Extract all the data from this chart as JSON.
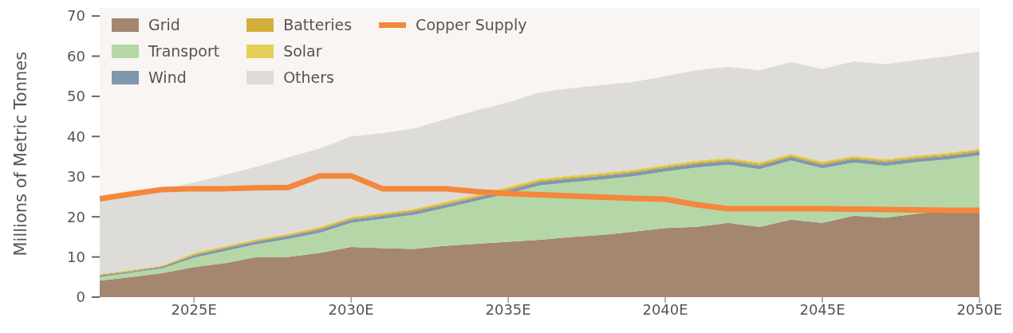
{
  "chart_data": {
    "type": "area",
    "stacked": true,
    "ylabel": "Millions of Metric Tonnes",
    "x": [
      2022,
      2023,
      2024,
      2025,
      2026,
      2027,
      2028,
      2029,
      2030,
      2031,
      2032,
      2033,
      2034,
      2035,
      2036,
      2037,
      2038,
      2039,
      2040,
      2041,
      2042,
      2043,
      2044,
      2045,
      2046,
      2047,
      2048,
      2049,
      2050
    ],
    "xlim": [
      2022,
      2050
    ],
    "xticks": [
      {
        "value": 2025,
        "label": "2025E"
      },
      {
        "value": 2030,
        "label": "2030E"
      },
      {
        "value": 2035,
        "label": "2035E"
      },
      {
        "value": 2040,
        "label": "2040E"
      },
      {
        "value": 2045,
        "label": "2045E"
      },
      {
        "value": 2050,
        "label": "2050E"
      }
    ],
    "ylim": [
      0,
      72
    ],
    "yticks": [
      0,
      10,
      20,
      30,
      40,
      50,
      60,
      70
    ],
    "grid": false,
    "legend": "top left",
    "marker": "none",
    "line_style": "solid",
    "series": [
      {
        "name": "Grid",
        "color": "#a58670",
        "values": [
          4.1,
          5,
          6,
          7.5,
          8.5,
          10,
          10,
          11,
          12.5,
          12.2,
          12,
          12.8,
          13.3,
          13.8,
          14.3,
          15,
          15.5,
          16.3,
          17.2,
          17.5,
          18.5,
          17.5,
          19.3,
          18.5,
          20.3,
          19.8,
          20.8,
          21.5,
          22
        ]
      },
      {
        "name": "Transport",
        "color": "#b5d7a8",
        "values": [
          0.9,
          1.1,
          1.2,
          2.3,
          3,
          3.2,
          4.5,
          5,
          6,
          7.3,
          8.5,
          9.4,
          10.7,
          12,
          13.5,
          13.6,
          13.8,
          13.8,
          14.1,
          14.8,
          14.5,
          14.4,
          14.7,
          13.6,
          13.2,
          12.9,
          12.8,
          12.8,
          13.3
        ]
      },
      {
        "name": "Wind",
        "color": "#7f98ae",
        "values": [
          0.4,
          0.3,
          0.4,
          0.6,
          0.7,
          0.7,
          0.7,
          0.8,
          0.8,
          0.8,
          0.8,
          0.8,
          0.8,
          0.9,
          0.9,
          0.9,
          0.9,
          0.9,
          0.9,
          0.9,
          0.9,
          0.9,
          0.9,
          0.9,
          0.9,
          0.9,
          0.9,
          0.9,
          0.9
        ]
      },
      {
        "name": "Batteries",
        "color": "#d4ae3a",
        "values": [
          0.2,
          0.2,
          0.2,
          0.3,
          0.3,
          0.3,
          0.3,
          0.4,
          0.4,
          0.4,
          0.4,
          0.4,
          0.4,
          0.4,
          0.4,
          0.4,
          0.4,
          0.4,
          0.4,
          0.4,
          0.4,
          0.4,
          0.4,
          0.4,
          0.4,
          0.4,
          0.4,
          0.4,
          0.4
        ]
      },
      {
        "name": "Solar",
        "color": "#e3cf55",
        "values": [
          0.2,
          0.2,
          0.2,
          0.3,
          0.3,
          0.3,
          0.3,
          0.3,
          0.3,
          0.3,
          0.3,
          0.4,
          0.4,
          0.4,
          0.4,
          0.4,
          0.4,
          0.4,
          0.4,
          0.4,
          0.4,
          0.4,
          0.4,
          0.4,
          0.4,
          0.4,
          0.4,
          0.4,
          0.4
        ]
      },
      {
        "name": "Others",
        "color": "#dedcd9",
        "values": [
          18.2,
          18.7,
          19,
          17.5,
          17.7,
          18,
          19,
          19.5,
          20,
          19.8,
          20,
          20.5,
          20.9,
          21,
          21.5,
          21.7,
          21.8,
          21.8,
          22,
          22.5,
          22.6,
          22.9,
          22.8,
          23,
          23.5,
          23.6,
          23.7,
          24,
          24.2
        ]
      },
      {
        "name": "Copper Supply",
        "type": "line",
        "color": "#f4873c",
        "values": [
          24.5,
          25.7,
          26.8,
          27,
          27,
          27.2,
          27.3,
          30.2,
          30.2,
          27,
          27,
          27,
          26.3,
          25.8,
          25.5,
          25.2,
          24.9,
          24.6,
          24.4,
          23,
          22,
          22,
          22,
          22,
          21.9,
          21.8,
          21.7,
          21.6,
          21.6
        ]
      }
    ]
  }
}
